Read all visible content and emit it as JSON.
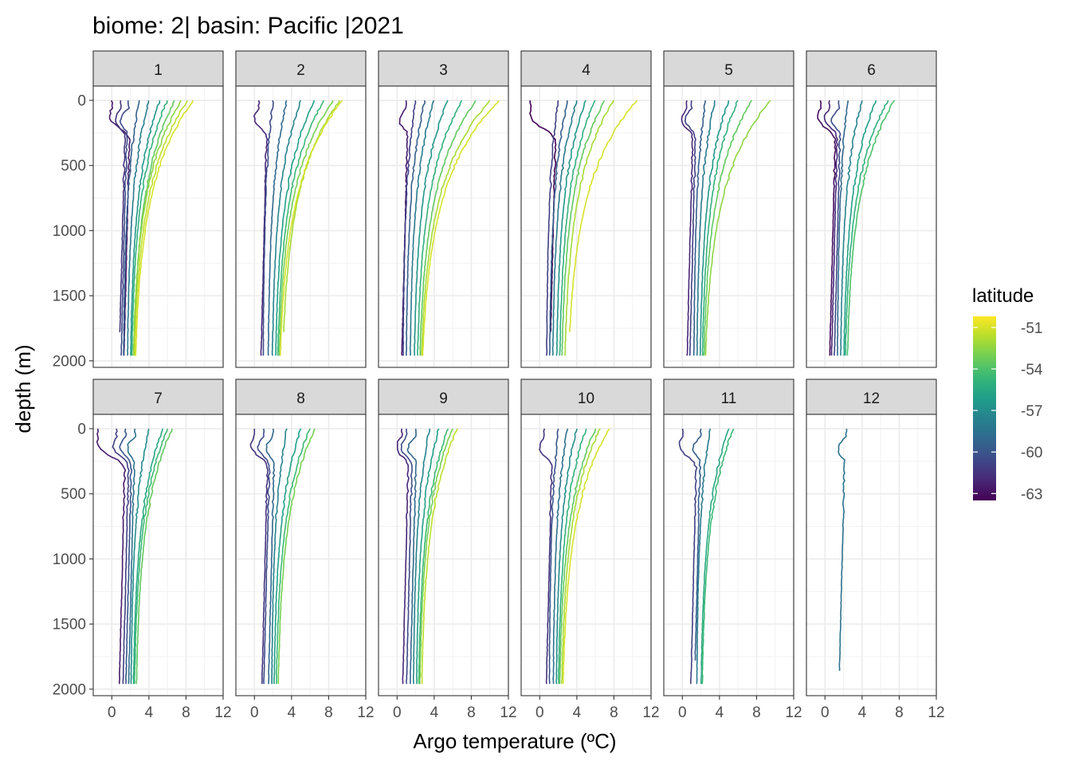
{
  "chart_data": {
    "type": "line",
    "title": "biome: 2| basin: Pacific |2021",
    "xlabel": "Argo temperature (ºC)",
    "ylabel": "depth (m)",
    "facet_variable": "month",
    "panels": [
      "1",
      "2",
      "3",
      "4",
      "5",
      "6",
      "7",
      "8",
      "9",
      "10",
      "11",
      "12"
    ],
    "xlim": [
      -2,
      12
    ],
    "ylim": [
      2050,
      -110
    ],
    "x_ticks": [
      0,
      4,
      8,
      12
    ],
    "x_tick_labels": [
      "0",
      "4",
      "8",
      "12"
    ],
    "y_ticks": [
      0,
      500,
      1000,
      1500,
      2000
    ],
    "y_tick_labels": [
      "0",
      "500",
      "1000",
      "1500",
      "2000"
    ],
    "grid": true,
    "legend": {
      "title": "latitude",
      "position": "right",
      "type": "colorbar",
      "range": [
        -63.5,
        -50.2
      ],
      "ticks": [
        -51,
        -54,
        -57,
        -60,
        -63
      ],
      "tick_labels": [
        "-51",
        "-54",
        "-57",
        "-60",
        "-63"
      ],
      "colormap": [
        "#440154",
        "#3b528b",
        "#21918c",
        "#5ec962",
        "#fde725"
      ]
    },
    "panel_profiles": [
      {
        "panel": "1",
        "profiles": [
          {
            "latitude": -51.0,
            "surface_temp": 8.8,
            "deep_temp": 2.3,
            "max_depth": 1970
          },
          {
            "latitude": -51.5,
            "surface_temp": 8.2,
            "deep_temp": 2.2,
            "max_depth": 1970
          },
          {
            "latitude": -52.5,
            "surface_temp": 7.5,
            "deep_temp": 2.1,
            "max_depth": 1970
          },
          {
            "latitude": -53.5,
            "surface_temp": 6.8,
            "deep_temp": 2.2,
            "max_depth": 1970
          },
          {
            "latitude": -55.0,
            "surface_temp": 6.0,
            "deep_temp": 2.0,
            "max_depth": 1970
          },
          {
            "latitude": -56.5,
            "surface_temp": 5.2,
            "deep_temp": 1.9,
            "max_depth": 1970
          },
          {
            "latitude": -58.0,
            "surface_temp": 4.0,
            "deep_temp": 1.6,
            "max_depth": 1970
          },
          {
            "latitude": -59.5,
            "surface_temp": 3.0,
            "deep_temp": 1.2,
            "max_depth": 1970
          },
          {
            "latitude": -60.5,
            "surface_temp": 1.8,
            "deep_temp": 1.0,
            "max_depth": 1970
          },
          {
            "latitude": -61.5,
            "surface_temp": 1.0,
            "deep_temp": 0.8,
            "max_depth": 1780
          },
          {
            "latitude": -62.5,
            "surface_temp": 0.0,
            "deep_temp": 1.3,
            "max_depth": 1970
          }
        ]
      },
      {
        "panel": "2",
        "profiles": [
          {
            "latitude": -51.0,
            "surface_temp": 9.5,
            "deep_temp": 2.5,
            "max_depth": 1970
          },
          {
            "latitude": -52.0,
            "surface_temp": 9.2,
            "deep_temp": 2.8,
            "max_depth": 1780
          },
          {
            "latitude": -53.0,
            "surface_temp": 8.5,
            "deep_temp": 2.4,
            "max_depth": 1970
          },
          {
            "latitude": -54.5,
            "surface_temp": 7.5,
            "deep_temp": 2.3,
            "max_depth": 1970
          },
          {
            "latitude": -56.0,
            "surface_temp": 6.5,
            "deep_temp": 2.1,
            "max_depth": 1970
          },
          {
            "latitude": -57.5,
            "surface_temp": 5.0,
            "deep_temp": 1.8,
            "max_depth": 1970
          },
          {
            "latitude": -59.0,
            "surface_temp": 3.5,
            "deep_temp": 1.4,
            "max_depth": 1970
          },
          {
            "latitude": -60.5,
            "surface_temp": 2.0,
            "deep_temp": 0.9,
            "max_depth": 1970
          },
          {
            "latitude": -62.0,
            "surface_temp": 0.5,
            "deep_temp": 0.7,
            "max_depth": 1970
          }
        ]
      },
      {
        "panel": "3",
        "profiles": [
          {
            "latitude": -51.0,
            "surface_temp": 11.0,
            "deep_temp": 2.4,
            "max_depth": 1970
          },
          {
            "latitude": -52.0,
            "surface_temp": 10.0,
            "deep_temp": 2.3,
            "max_depth": 1970
          },
          {
            "latitude": -53.5,
            "surface_temp": 8.5,
            "deep_temp": 2.2,
            "max_depth": 1970
          },
          {
            "latitude": -55.0,
            "surface_temp": 7.0,
            "deep_temp": 2.0,
            "max_depth": 1970
          },
          {
            "latitude": -56.5,
            "surface_temp": 5.5,
            "deep_temp": 1.7,
            "max_depth": 1970
          },
          {
            "latitude": -58.0,
            "surface_temp": 4.0,
            "deep_temp": 1.3,
            "max_depth": 1970
          },
          {
            "latitude": -59.5,
            "surface_temp": 3.0,
            "deep_temp": 0.9,
            "max_depth": 1970
          },
          {
            "latitude": -61.0,
            "surface_temp": 2.0,
            "deep_temp": 0.6,
            "max_depth": 1970
          },
          {
            "latitude": -62.5,
            "surface_temp": 1.0,
            "deep_temp": 0.5,
            "max_depth": 1970
          }
        ]
      },
      {
        "panel": "4",
        "profiles": [
          {
            "latitude": -51.0,
            "surface_temp": 10.5,
            "deep_temp": 2.8,
            "max_depth": 1780
          },
          {
            "latitude": -52.0,
            "surface_temp": 8.0,
            "deep_temp": 2.5,
            "max_depth": 1970
          },
          {
            "latitude": -53.5,
            "surface_temp": 7.0,
            "deep_temp": 2.2,
            "max_depth": 1970
          },
          {
            "latitude": -55.0,
            "surface_temp": 6.0,
            "deep_temp": 2.0,
            "max_depth": 1970
          },
          {
            "latitude": -56.5,
            "surface_temp": 5.0,
            "deep_temp": 1.7,
            "max_depth": 1970
          },
          {
            "latitude": -58.0,
            "surface_temp": 4.0,
            "deep_temp": 1.3,
            "max_depth": 1970
          },
          {
            "latitude": -59.5,
            "surface_temp": 3.0,
            "deep_temp": 1.0,
            "max_depth": 1970
          },
          {
            "latitude": -61.0,
            "surface_temp": 2.0,
            "deep_temp": 0.7,
            "max_depth": 1970
          },
          {
            "latitude": -63.5,
            "surface_temp": -1.0,
            "deep_temp": 1.1,
            "max_depth": 1780
          }
        ]
      },
      {
        "panel": "5",
        "profiles": [
          {
            "latitude": -52.5,
            "surface_temp": 9.5,
            "deep_temp": 2.2,
            "max_depth": 1970
          },
          {
            "latitude": -53.5,
            "surface_temp": 7.5,
            "deep_temp": 2.1,
            "max_depth": 1970
          },
          {
            "latitude": -55.0,
            "surface_temp": 6.0,
            "deep_temp": 2.0,
            "max_depth": 1970
          },
          {
            "latitude": -56.5,
            "surface_temp": 5.0,
            "deep_temp": 1.8,
            "max_depth": 1970
          },
          {
            "latitude": -58.0,
            "surface_temp": 3.5,
            "deep_temp": 1.5,
            "max_depth": 1970
          },
          {
            "latitude": -59.5,
            "surface_temp": 2.5,
            "deep_temp": 1.2,
            "max_depth": 1970
          },
          {
            "latitude": -61.0,
            "surface_temp": 1.0,
            "deep_temp": 0.8,
            "max_depth": 1970
          },
          {
            "latitude": -62.0,
            "surface_temp": 0.5,
            "deep_temp": 0.5,
            "max_depth": 1970
          }
        ]
      },
      {
        "panel": "6",
        "profiles": [
          {
            "latitude": -54.0,
            "surface_temp": 7.5,
            "deep_temp": 2.2,
            "max_depth": 1970
          },
          {
            "latitude": -55.0,
            "surface_temp": 6.8,
            "deep_temp": 2.0,
            "max_depth": 1970
          },
          {
            "latitude": -56.0,
            "surface_temp": 5.5,
            "deep_temp": 1.9,
            "max_depth": 1970
          },
          {
            "latitude": -57.5,
            "surface_temp": 4.0,
            "deep_temp": 1.6,
            "max_depth": 1970
          },
          {
            "latitude": -59.0,
            "surface_temp": 2.5,
            "deep_temp": 1.3,
            "max_depth": 1970
          },
          {
            "latitude": -60.5,
            "surface_temp": 1.5,
            "deep_temp": 1.0,
            "max_depth": 1970
          },
          {
            "latitude": -62.0,
            "surface_temp": 0.5,
            "deep_temp": 0.7,
            "max_depth": 1970
          },
          {
            "latitude": -63.0,
            "surface_temp": -0.5,
            "deep_temp": 0.5,
            "max_depth": 1970
          }
        ]
      },
      {
        "panel": "7",
        "profiles": [
          {
            "latitude": -53.5,
            "surface_temp": 6.5,
            "deep_temp": 2.5,
            "max_depth": 1970
          },
          {
            "latitude": -54.5,
            "surface_temp": 6.0,
            "deep_temp": 2.3,
            "max_depth": 1970
          },
          {
            "latitude": -55.5,
            "surface_temp": 5.5,
            "deep_temp": 2.2,
            "max_depth": 1970
          },
          {
            "latitude": -57.0,
            "surface_temp": 4.0,
            "deep_temp": 2.0,
            "max_depth": 1970
          },
          {
            "latitude": -58.5,
            "surface_temp": 2.5,
            "deep_temp": 1.8,
            "max_depth": 1970
          },
          {
            "latitude": -60.0,
            "surface_temp": 1.5,
            "deep_temp": 1.5,
            "max_depth": 1970
          },
          {
            "latitude": -61.0,
            "surface_temp": 0.5,
            "deep_temp": 1.2,
            "max_depth": 1970
          },
          {
            "latitude": -62.5,
            "surface_temp": -1.5,
            "deep_temp": 0.8,
            "max_depth": 1970
          }
        ]
      },
      {
        "panel": "8",
        "profiles": [
          {
            "latitude": -53.0,
            "surface_temp": 6.5,
            "deep_temp": 2.4,
            "max_depth": 1970
          },
          {
            "latitude": -54.5,
            "surface_temp": 6.0,
            "deep_temp": 2.2,
            "max_depth": 1970
          },
          {
            "latitude": -56.0,
            "surface_temp": 5.0,
            "deep_temp": 2.0,
            "max_depth": 1970
          },
          {
            "latitude": -57.5,
            "surface_temp": 3.5,
            "deep_temp": 1.8,
            "max_depth": 1970
          },
          {
            "latitude": -59.0,
            "surface_temp": 2.0,
            "deep_temp": 1.5,
            "max_depth": 1970
          },
          {
            "latitude": -60.5,
            "surface_temp": 1.0,
            "deep_temp": 1.0,
            "max_depth": 1970
          },
          {
            "latitude": -61.5,
            "surface_temp": 0.0,
            "deep_temp": 0.8,
            "max_depth": 1970
          }
        ]
      },
      {
        "panel": "9",
        "profiles": [
          {
            "latitude": -51.5,
            "surface_temp": 6.5,
            "deep_temp": 2.5,
            "max_depth": 1970
          },
          {
            "latitude": -53.0,
            "surface_temp": 6.0,
            "deep_temp": 2.3,
            "max_depth": 1970
          },
          {
            "latitude": -54.5,
            "surface_temp": 5.5,
            "deep_temp": 2.2,
            "max_depth": 1970
          },
          {
            "latitude": -56.0,
            "surface_temp": 4.5,
            "deep_temp": 2.0,
            "max_depth": 1970
          },
          {
            "latitude": -57.5,
            "surface_temp": 3.5,
            "deep_temp": 1.7,
            "max_depth": 1970
          },
          {
            "latitude": -59.0,
            "surface_temp": 2.0,
            "deep_temp": 1.4,
            "max_depth": 1970
          },
          {
            "latitude": -60.5,
            "surface_temp": 1.0,
            "deep_temp": 1.0,
            "max_depth": 1970
          },
          {
            "latitude": -62.0,
            "surface_temp": 0.5,
            "deep_temp": 0.6,
            "max_depth": 1970
          }
        ]
      },
      {
        "panel": "10",
        "profiles": [
          {
            "latitude": -51.0,
            "surface_temp": 7.5,
            "deep_temp": 2.3,
            "max_depth": 1970
          },
          {
            "latitude": -52.0,
            "surface_temp": 6.5,
            "deep_temp": 2.2,
            "max_depth": 1970
          },
          {
            "latitude": -53.5,
            "surface_temp": 6.0,
            "deep_temp": 2.0,
            "max_depth": 1970
          },
          {
            "latitude": -55.0,
            "surface_temp": 5.0,
            "deep_temp": 1.9,
            "max_depth": 1970
          },
          {
            "latitude": -57.0,
            "surface_temp": 4.0,
            "deep_temp": 1.7,
            "max_depth": 1970
          },
          {
            "latitude": -58.5,
            "surface_temp": 3.0,
            "deep_temp": 1.4,
            "max_depth": 1970
          },
          {
            "latitude": -60.0,
            "surface_temp": 2.0,
            "deep_temp": 1.0,
            "max_depth": 1970
          },
          {
            "latitude": -61.5,
            "surface_temp": 0.5,
            "deep_temp": 0.7,
            "max_depth": 1970
          }
        ]
      },
      {
        "panel": "11",
        "profiles": [
          {
            "latitude": -54.5,
            "surface_temp": 5.5,
            "deep_temp": 2.0,
            "max_depth": 1970
          },
          {
            "latitude": -55.5,
            "surface_temp": 5.0,
            "deep_temp": 1.9,
            "max_depth": 1970
          },
          {
            "latitude": -58.0,
            "surface_temp": 3.0,
            "deep_temp": 1.5,
            "max_depth": 1970
          },
          {
            "latitude": -59.5,
            "surface_temp": 2.0,
            "deep_temp": 1.3,
            "max_depth": 1780
          },
          {
            "latitude": -61.0,
            "surface_temp": 0.0,
            "deep_temp": 0.9,
            "max_depth": 1970
          }
        ]
      },
      {
        "panel": "12",
        "profiles": [
          {
            "latitude": -58.5,
            "surface_temp": 2.3,
            "deep_temp": 1.5,
            "max_depth": 1870
          }
        ]
      }
    ]
  }
}
